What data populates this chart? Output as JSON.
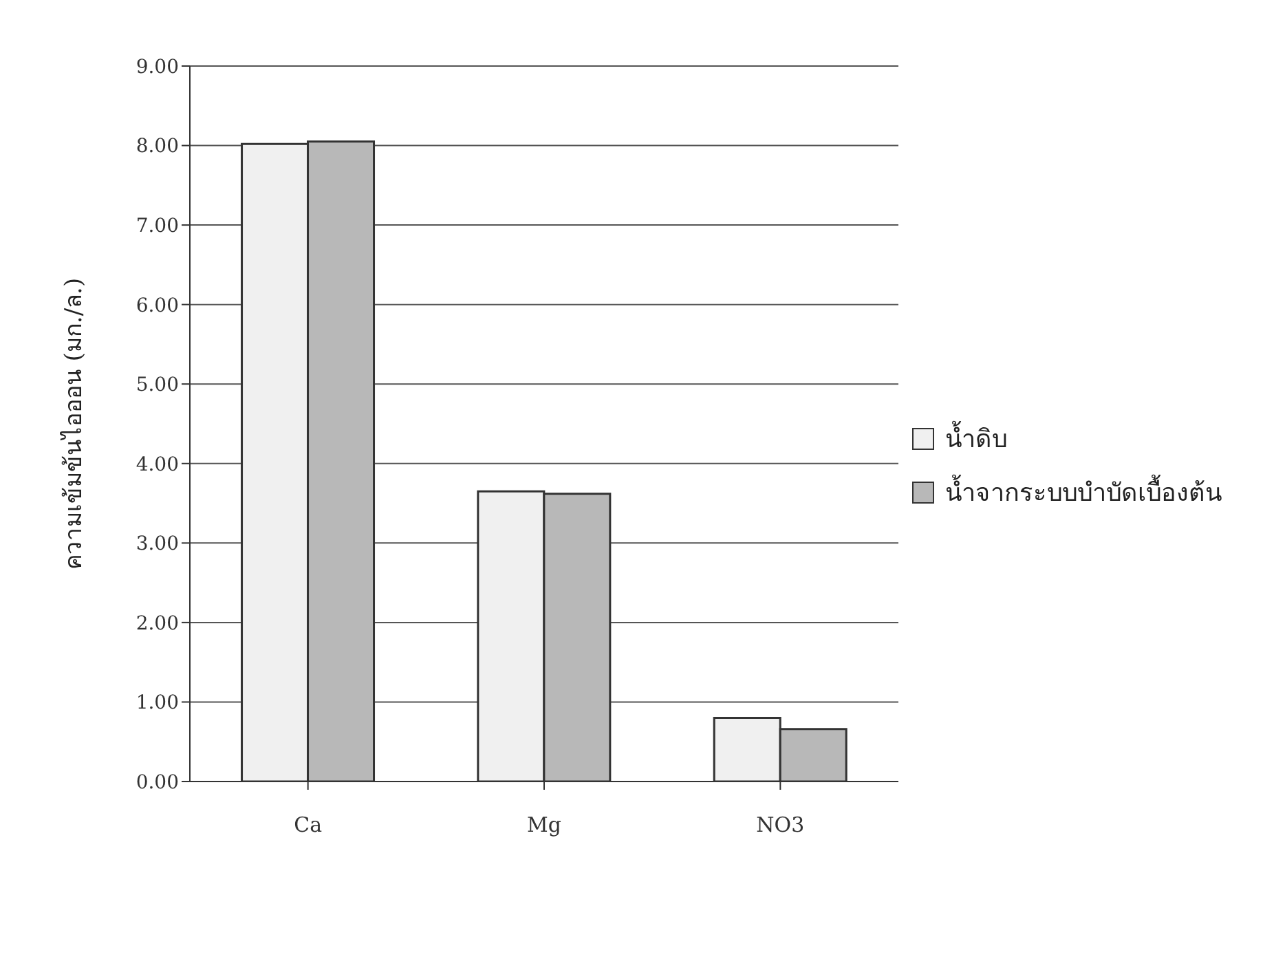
{
  "chart_data": {
    "type": "bar",
    "ylabel": "ความเข้มข้นไอออน   (มก./ล.)",
    "categories": [
      "Ca",
      "Mg",
      "NO3"
    ],
    "series": [
      {
        "name": "น้ำดิบ",
        "color": "#f0f0f0",
        "values": [
          8.02,
          3.65,
          0.8
        ]
      },
      {
        "name": "น้ำจากระบบบำบัดเบื้องต้น",
        "color": "#b8b8b8",
        "values": [
          8.05,
          3.62,
          0.66
        ]
      }
    ],
    "ylim": [
      0,
      9
    ],
    "yticks": [
      {
        "value": 0,
        "label": "0.00"
      },
      {
        "value": 1,
        "label": "1.00"
      },
      {
        "value": 2,
        "label": "2.00"
      },
      {
        "value": 3,
        "label": "3.00"
      },
      {
        "value": 4,
        "label": "4.00"
      },
      {
        "value": 5,
        "label": "5.00"
      },
      {
        "value": 6,
        "label": "6.00"
      },
      {
        "value": 7,
        "label": "7.00"
      },
      {
        "value": 8,
        "label": "8.00"
      },
      {
        "value": 9,
        "label": "9.00"
      }
    ],
    "grid": "y",
    "legend": "right"
  }
}
